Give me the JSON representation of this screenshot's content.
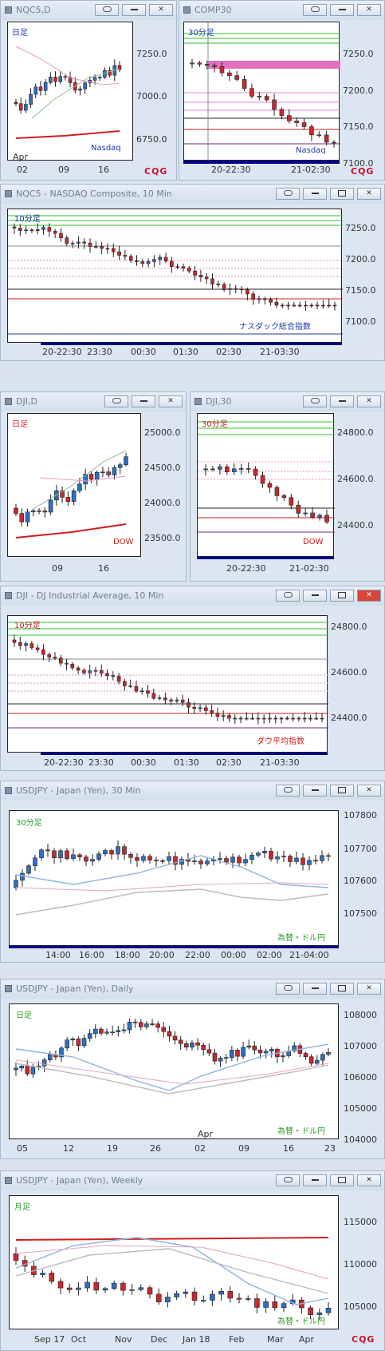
{
  "colors": {
    "up": "#2f6fbf",
    "down": "#c8282d",
    "accent_blue": "#1e3aa8",
    "accent_red": "#d21e1e",
    "accent_green": "#2a9a2a",
    "pink": "#e070c0"
  },
  "windows": {
    "nqc5_d": {
      "title": "NQC5,D",
      "label": "日足",
      "series_label": "Nasdaq",
      "y_ticks": [
        "7250.0",
        "7000.0",
        "6750.0"
      ],
      "x_ticks": [
        "02",
        "09",
        "16"
      ],
      "month": "Apr"
    },
    "comp30": {
      "title": "COMP30",
      "label": "30分足",
      "series_label": "Nasdaq",
      "y_ticks": [
        "7250.0",
        "7200.0",
        "7150.0",
        "7100.0"
      ],
      "x_ticks": [
        "20-22:30",
        "21-02:30"
      ]
    },
    "nqc5_10": {
      "title": "NQC5 - NASDAQ Composite, 10 Min",
      "label": "10分足",
      "series_label": "ナスダック総合指数",
      "y_ticks": [
        "7250.0",
        "7200.0",
        "7150.0",
        "7100.0"
      ],
      "x_ticks": [
        "20-22:30",
        "23:30",
        "00:30",
        "01:30",
        "02:30",
        "21-03:30"
      ]
    },
    "dji_d": {
      "title": "DJI,D",
      "label": "日足",
      "series_label": "DOW",
      "y_ticks": [
        "25000.0",
        "24500.0",
        "24000.0",
        "23500.0"
      ],
      "x_ticks": [
        "09",
        "16"
      ]
    },
    "dji30": {
      "title": "DJI,30",
      "label": "30分足",
      "series_label": "DOW",
      "y_ticks": [
        "24800.0",
        "24600.0",
        "24400.0"
      ],
      "x_ticks": [
        "20-22:30",
        "21-02:30"
      ]
    },
    "dji_10": {
      "title": "DJI - DJ Industrial Average, 10 Min",
      "label": "10分足",
      "series_label": "ダウ平均指数",
      "y_ticks": [
        "24800.0",
        "24600.0",
        "24400.0"
      ],
      "x_ticks": [
        "20-22:30",
        "23:30",
        "00:30",
        "01:30",
        "02:30",
        "21-03:30"
      ]
    },
    "usdjpy_30": {
      "title": "USDJPY - Japan (Yen), 30 Min",
      "label": "30分足",
      "series_label": "為替・ドル円",
      "y_ticks": [
        "107800",
        "107700",
        "107600",
        "107500"
      ],
      "x_ticks": [
        "14:00",
        "16:00",
        "18:00",
        "20:00",
        "22:00",
        "00:00",
        "02:00",
        "21-04:00"
      ]
    },
    "usdjpy_d": {
      "title": "USDJPY - Japan (Yen), Daily",
      "label": "日足",
      "series_label": "為替・ドル円",
      "y_ticks": [
        "108000",
        "107000",
        "106000",
        "105000",
        "104000"
      ],
      "x_ticks": [
        "05",
        "12",
        "19",
        "26",
        "02",
        "09",
        "16",
        "23"
      ],
      "month": "Apr"
    },
    "usdjpy_w": {
      "title": "USDJPY - Japan (Yen), Weekly",
      "label": "月足",
      "series_label": "為替・ドル円",
      "y_ticks": [
        "115000",
        "110000",
        "105000"
      ],
      "x_ticks": [
        "Sep 17",
        "Oct",
        "Nov",
        "Dec",
        "Jan 18",
        "Feb",
        "Mar",
        "Apr"
      ]
    }
  },
  "cqg": {
    "text": "CQG"
  },
  "buttons": {
    "link": "link",
    "min": "minimize",
    "max": "maximize",
    "close": "X"
  }
}
